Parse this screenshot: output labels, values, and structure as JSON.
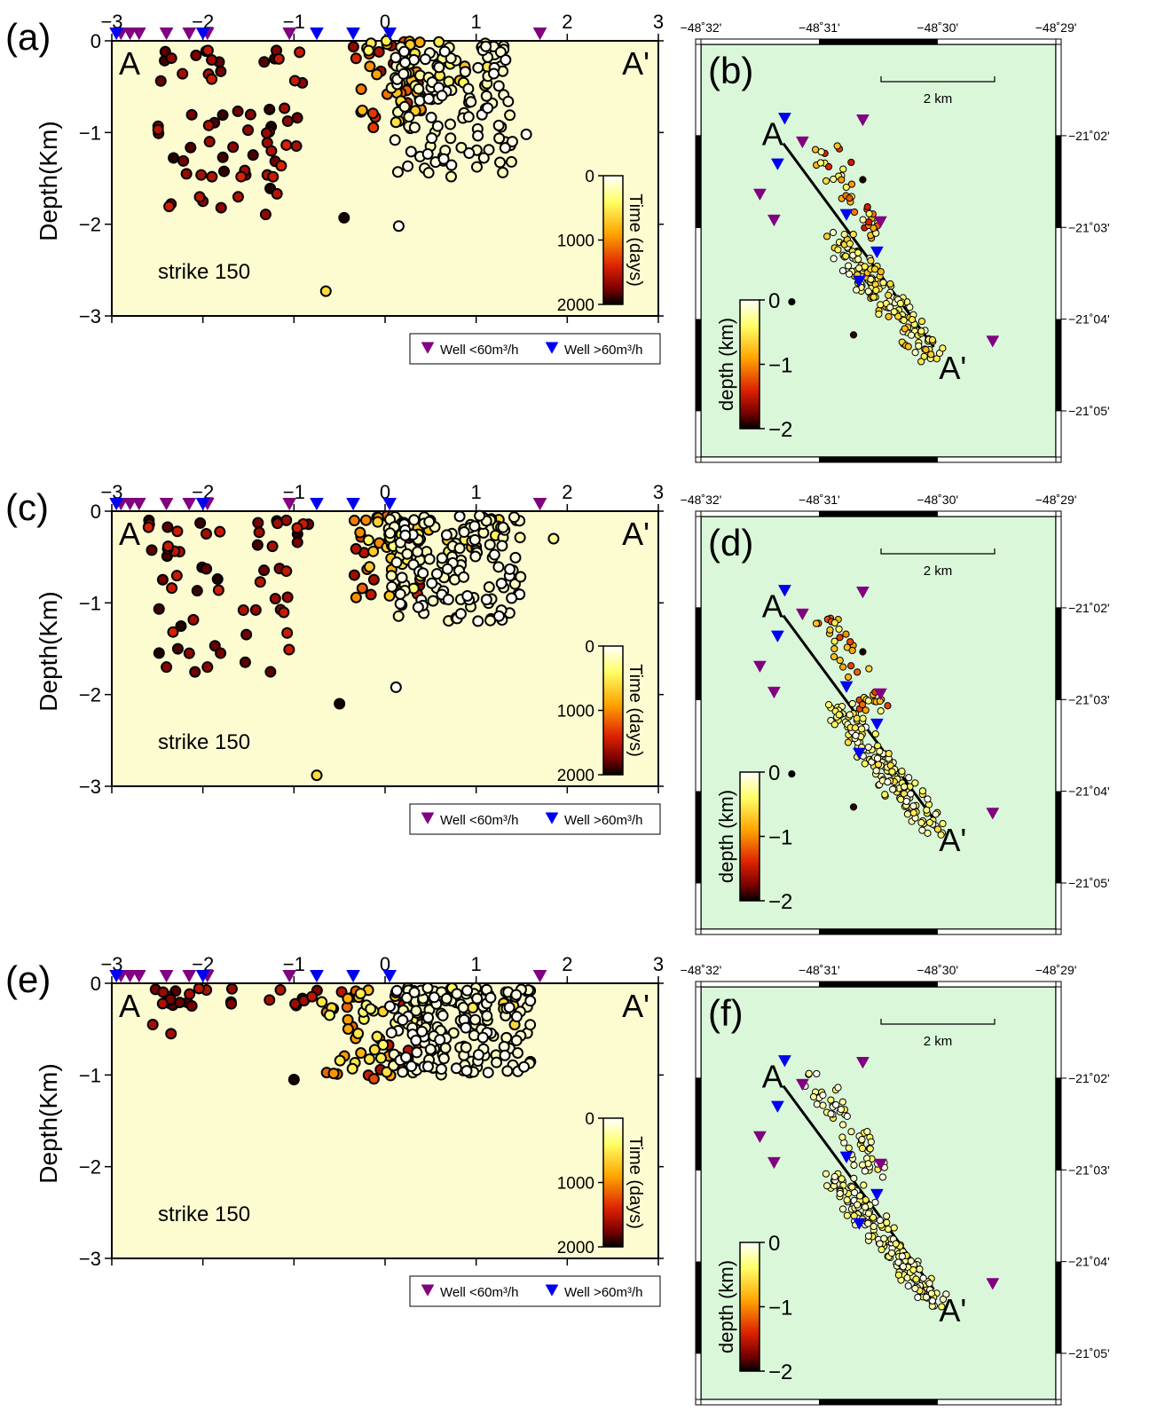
{
  "figure": {
    "rows": [
      {
        "section": {
          "panel_label": "(a)",
          "label_a": "A",
          "label_a_prime": "A'",
          "strike_text": "strike 150"
        },
        "map": {
          "panel_label": "(b)",
          "label_a": "A",
          "label_a_prime": "A'",
          "scale_label": "2 km"
        }
      },
      {
        "section": {
          "panel_label": "(c)",
          "label_a": "A",
          "label_a_prime": "A'",
          "strike_text": "strike 150"
        },
        "map": {
          "panel_label": "(d)",
          "label_a": "A",
          "label_a_prime": "A'",
          "scale_label": "2 km"
        }
      },
      {
        "section": {
          "panel_label": "(e)",
          "label_a": "A",
          "label_a_prime": "A'",
          "strike_text": "strike 150"
        },
        "map": {
          "panel_label": "(f)",
          "label_a": "A",
          "label_a_prime": "A'",
          "scale_label": "2 km"
        }
      }
    ],
    "section_axes": {
      "ylabel": "Depth(Km)",
      "x_ticks": [
        "−3",
        "−2",
        "−1",
        "0",
        "1",
        "2",
        "3"
      ],
      "y_ticks": [
        "0",
        "−1",
        "−2",
        "−3"
      ]
    },
    "time_colorbar": {
      "label": "Time (days)",
      "ticks": [
        "0",
        "1000",
        "2000"
      ]
    },
    "depth_colorbar": {
      "label": "depth (km)",
      "ticks": [
        "0",
        "−1",
        "−2"
      ]
    },
    "legend": {
      "well_low": "Well <60m³/h",
      "well_high": "Well >60m³/h"
    },
    "map_axes": {
      "lon_ticks": [
        "−48˚32'",
        "−48˚31'",
        "−48˚30'",
        "−48˚29'"
      ],
      "lat_ticks": [
        "−21˚02'",
        "−21˚03'",
        "−21˚04'",
        "−21˚05'"
      ]
    },
    "colors": {
      "section_bg": "#fdfbd0",
      "map_bg": "#daf7da",
      "well_low": "#800080",
      "well_high": "#0000ee",
      "colormap": [
        "#ffffff",
        "#ffff66",
        "#ffa500",
        "#dd2200",
        "#7a0000",
        "#000000"
      ]
    },
    "icons": {
      "well_marker": "inverted-triangle-icon",
      "event_marker": "circle-icon"
    }
  },
  "chart_data": [
    {
      "type": "scatter",
      "panel": "(a)",
      "xlabel": "",
      "ylabel": "Depth(Km)",
      "xlim": [
        -3,
        3
      ],
      "ylim": [
        -3,
        0
      ],
      "colorbar": {
        "label": "Time (days)",
        "range": [
          0,
          2000
        ]
      },
      "wells_low_x": [
        -2.9,
        -2.8,
        -2.7,
        -2.4,
        -2.15,
        -1.95,
        -1.05,
        1.7
      ],
      "wells_high_x": [
        -2.95,
        -2.0,
        -0.75,
        -0.35,
        0.05
      ],
      "clusters": [
        {
          "x": [
            -2.6,
            -1.8
          ],
          "depth": [
            -0.05,
            -0.5
          ],
          "n": 14,
          "time": [
            1400,
            1950
          ]
        },
        {
          "x": [
            -2.5,
            -1.0
          ],
          "depth": [
            -0.7,
            -1.9
          ],
          "n": 38,
          "time": [
            1400,
            1950
          ]
        },
        {
          "x": [
            -1.4,
            -0.8
          ],
          "depth": [
            -0.1,
            -1.7
          ],
          "n": 14,
          "time": [
            1400,
            1950
          ]
        },
        {
          "x": [
            -0.35,
            0.4
          ],
          "depth": [
            0.0,
            -1.0
          ],
          "n": 45,
          "time": [
            300,
            1700
          ]
        },
        {
          "x": [
            0.1,
            1.4
          ],
          "depth": [
            -0.05,
            -1.5
          ],
          "n": 115,
          "time": [
            0,
            200
          ]
        },
        {
          "x": [
            0.0,
            1.2
          ],
          "depth": [
            0.0,
            -0.6
          ],
          "n": 25,
          "time": [
            200,
            800
          ]
        }
      ],
      "points": [
        {
          "x": -0.45,
          "depth": -1.93,
          "time": 1950
        },
        {
          "x": 0.15,
          "depth": -2.02,
          "time": 20
        },
        {
          "x": -0.65,
          "depth": -2.73,
          "time": 600
        },
        {
          "x": -2.35,
          "depth": -1.78,
          "time": 1700
        },
        {
          "x": -2.0,
          "depth": -1.75,
          "time": 1700
        },
        {
          "x": -1.8,
          "depth": -1.82,
          "time": 1700
        },
        {
          "x": 1.55,
          "depth": -1.02,
          "time": 20
        }
      ]
    },
    {
      "type": "scatter",
      "panel": "(b)",
      "xlabel": "",
      "ylabel": "",
      "xlim": [
        -48.5333,
        -48.4833
      ],
      "ylim": [
        -21.0917,
        -21.0167
      ],
      "colorbar": {
        "label": "depth (km)",
        "range": [
          -2,
          0
        ]
      },
      "profile_line": {
        "from": [
          -48.5217,
          -21.0347
        ],
        "to": [
          -48.5005,
          -21.0717
        ]
      },
      "wells_low": [
        [
          -48.519,
          -21.0345
        ],
        [
          -48.5105,
          -21.0305
        ],
        [
          -48.525,
          -21.044
        ],
        [
          -48.523,
          -21.0487
        ],
        [
          -48.508,
          -21.049
        ],
        [
          -48.4922,
          -21.0707
        ]
      ],
      "wells_high": [
        [
          -48.5215,
          -21.0302
        ],
        [
          -48.5225,
          -21.0385
        ],
        [
          -48.5128,
          -21.0477
        ],
        [
          -48.5085,
          -21.0545
        ],
        [
          -48.511,
          -21.0598
        ]
      ],
      "clusters": [
        {
          "lon": [
            -48.516,
            -48.5085
          ],
          "lat": [
            -21.035,
            -21.052
          ],
          "n": 40,
          "depth": [
            -0.2,
            -1.5
          ]
        },
        {
          "lon": [
            -48.514,
            -48.5005
          ],
          "lat": [
            -21.052,
            -21.0738
          ],
          "n": 150,
          "depth": [
            0,
            -0.8
          ]
        }
      ],
      "points": [
        {
          "lon": -48.5205,
          "lat": -21.0635,
          "depth": -2.0
        },
        {
          "lon": -48.5118,
          "lat": -21.0695,
          "depth": -1.9
        },
        {
          "lon": -48.5105,
          "lat": -21.0413,
          "depth": -1.95
        }
      ]
    },
    {
      "type": "scatter",
      "panel": "(c)",
      "xlabel": "",
      "ylabel": "Depth(Km)",
      "xlim": [
        -3,
        3
      ],
      "ylim": [
        -3,
        0
      ],
      "colorbar": {
        "label": "Time (days)",
        "range": [
          0,
          2000
        ]
      },
      "wells_low_x": [
        -2.9,
        -2.8,
        -2.7,
        -2.4,
        -2.15,
        -1.95,
        -1.05,
        1.7
      ],
      "wells_high_x": [
        -2.95,
        -2.0,
        -0.75,
        -0.35,
        0.05
      ],
      "clusters": [
        {
          "x": [
            -2.7,
            -1.7
          ],
          "depth": [
            -0.1,
            -0.5
          ],
          "n": 14,
          "time": [
            1400,
            1950
          ]
        },
        {
          "x": [
            -2.5,
            -1.0
          ],
          "depth": [
            -0.6,
            -1.8
          ],
          "n": 32,
          "time": [
            1400,
            1950
          ]
        },
        {
          "x": [
            -1.4,
            -0.8
          ],
          "depth": [
            -0.1,
            -0.4
          ],
          "n": 12,
          "time": [
            1400,
            1950
          ]
        },
        {
          "x": [
            -0.35,
            0.4
          ],
          "depth": [
            -0.05,
            -1.0
          ],
          "n": 45,
          "time": [
            300,
            1700
          ]
        },
        {
          "x": [
            0.05,
            1.5
          ],
          "depth": [
            -0.05,
            -1.2
          ],
          "n": 125,
          "time": [
            0,
            200
          ]
        },
        {
          "x": [
            0.0,
            1.3
          ],
          "depth": [
            -0.05,
            -0.5
          ],
          "n": 30,
          "time": [
            200,
            800
          ]
        }
      ],
      "points": [
        {
          "x": -0.5,
          "depth": -2.1,
          "time": 1950
        },
        {
          "x": 0.12,
          "depth": -1.92,
          "time": 20
        },
        {
          "x": -0.75,
          "depth": -2.88,
          "time": 600
        },
        {
          "x": 1.85,
          "depth": -0.3,
          "time": 300
        },
        {
          "x": -2.4,
          "depth": -1.7,
          "time": 1700
        },
        {
          "x": -2.15,
          "depth": -1.55,
          "time": 1700
        },
        {
          "x": -1.95,
          "depth": -1.7,
          "time": 1700
        }
      ]
    },
    {
      "type": "scatter",
      "panel": "(d)",
      "xlabel": "",
      "ylabel": "",
      "xlim": [
        -48.5333,
        -48.4833
      ],
      "ylim": [
        -21.0917,
        -21.0167
      ],
      "colorbar": {
        "label": "depth (km)",
        "range": [
          -2,
          0
        ]
      },
      "profile_line": {
        "from": [
          -48.5217,
          -21.0347
        ],
        "to": [
          -48.5005,
          -21.0717
        ]
      },
      "wells_low": [
        [
          -48.519,
          -21.0345
        ],
        [
          -48.5105,
          -21.0305
        ],
        [
          -48.525,
          -21.044
        ],
        [
          -48.523,
          -21.0487
        ],
        [
          -48.508,
          -21.049
        ],
        [
          -48.4922,
          -21.0707
        ]
      ],
      "wells_high": [
        [
          -48.5215,
          -21.0302
        ],
        [
          -48.5225,
          -21.0385
        ],
        [
          -48.5128,
          -21.0477
        ],
        [
          -48.5085,
          -21.0545
        ],
        [
          -48.511,
          -21.0598
        ]
      ],
      "clusters": [
        {
          "lon": [
            -48.516,
            -48.5085
          ],
          "lat": [
            -21.035,
            -21.052
          ],
          "n": 40,
          "depth": [
            -0.2,
            -1.3
          ]
        },
        {
          "lon": [
            -48.514,
            -48.5005
          ],
          "lat": [
            -21.052,
            -21.0738
          ],
          "n": 155,
          "depth": [
            0,
            -0.6
          ]
        }
      ],
      "points": [
        {
          "lon": -48.5205,
          "lat": -21.0635,
          "depth": -2.0
        },
        {
          "lon": -48.5118,
          "lat": -21.0695,
          "depth": -1.9
        },
        {
          "lon": -48.5105,
          "lat": -21.0413,
          "depth": -1.95
        }
      ]
    },
    {
      "type": "scatter",
      "panel": "(e)",
      "xlabel": "",
      "ylabel": "Depth(Km)",
      "xlim": [
        -3,
        3
      ],
      "ylim": [
        -3,
        0
      ],
      "colorbar": {
        "label": "Time (days)",
        "range": [
          0,
          2000
        ]
      },
      "wells_low_x": [
        -2.9,
        -2.8,
        -2.7,
        -2.4,
        -2.15,
        -1.95,
        -1.05,
        1.7
      ],
      "wells_high_x": [
        -2.95,
        -2.0,
        -0.75,
        -0.35,
        0.05
      ],
      "clusters": [
        {
          "x": [
            -2.7,
            -0.7
          ],
          "depth": [
            -0.05,
            -0.25
          ],
          "n": 25,
          "time": [
            1500,
            1950
          ]
        },
        {
          "x": [
            -0.7,
            0.4
          ],
          "depth": [
            -0.05,
            -1.05
          ],
          "n": 60,
          "time": [
            300,
            1700
          ]
        },
        {
          "x": [
            0.05,
            1.6
          ],
          "depth": [
            -0.05,
            -1.0
          ],
          "n": 160,
          "time": [
            0,
            200
          ]
        },
        {
          "x": [
            0.1,
            1.6
          ],
          "depth": [
            -0.05,
            -0.5
          ],
          "n": 30,
          "time": [
            200,
            800
          ]
        }
      ],
      "points": [
        {
          "x": -1.0,
          "depth": -1.05,
          "time": 1950
        },
        {
          "x": -2.55,
          "depth": -0.45,
          "time": 1600
        },
        {
          "x": -2.35,
          "depth": -0.55,
          "time": 1600
        }
      ]
    },
    {
      "type": "scatter",
      "panel": "(f)",
      "xlabel": "",
      "ylabel": "",
      "xlim": [
        -48.5333,
        -48.4833
      ],
      "ylim": [
        -21.0917,
        -21.0167
      ],
      "colorbar": {
        "label": "depth (km)",
        "range": [
          -2,
          0
        ]
      },
      "profile_line": {
        "from": [
          -48.5217,
          -21.0347
        ],
        "to": [
          -48.5005,
          -21.0717
        ]
      },
      "wells_low": [
        [
          -48.519,
          -21.0345
        ],
        [
          -48.5105,
          -21.0305
        ],
        [
          -48.525,
          -21.044
        ],
        [
          -48.523,
          -21.0487
        ],
        [
          -48.508,
          -21.049
        ],
        [
          -48.4922,
          -21.0707
        ]
      ],
      "wells_high": [
        [
          -48.5215,
          -21.0302
        ],
        [
          -48.5225,
          -21.0385
        ],
        [
          -48.5128,
          -21.0477
        ],
        [
          -48.5085,
          -21.0545
        ],
        [
          -48.511,
          -21.0598
        ]
      ],
      "clusters": [
        {
          "lon": [
            -48.517,
            -48.508
          ],
          "lat": [
            -21.034,
            -21.052
          ],
          "n": 60,
          "depth": [
            0,
            -0.5
          ]
        },
        {
          "lon": [
            -48.514,
            -48.5005
          ],
          "lat": [
            -21.052,
            -21.0738
          ],
          "n": 170,
          "depth": [
            0,
            -0.5
          ]
        }
      ],
      "points": []
    }
  ]
}
